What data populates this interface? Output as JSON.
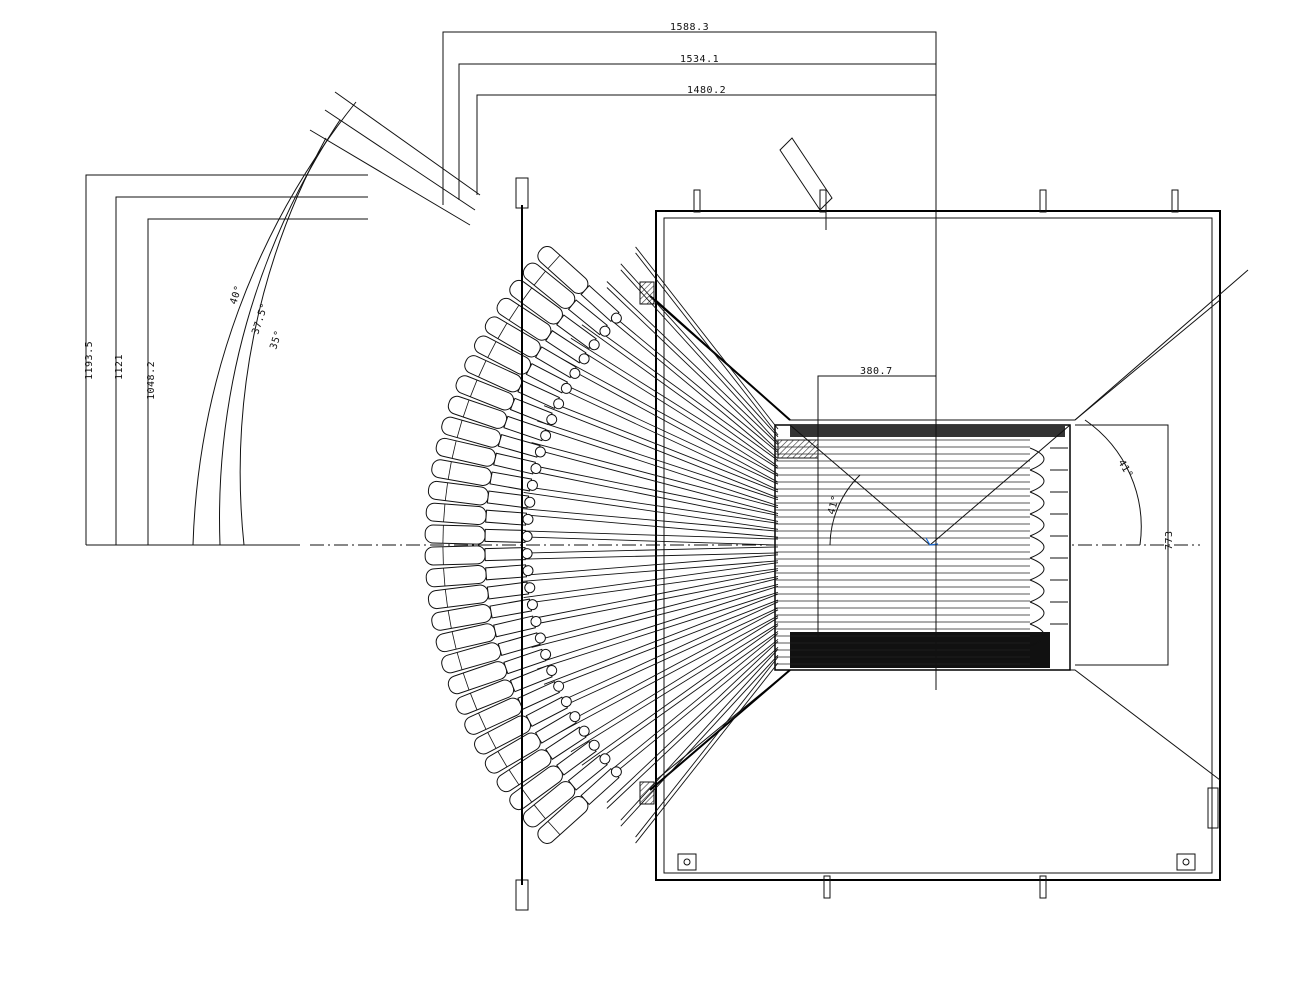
{
  "dimensions": {
    "top_1": "1588.3",
    "top_2": "1534.1",
    "top_3": "1480.2",
    "left_1": "1193.5",
    "left_2": "1121",
    "left_3": "1048.2",
    "center_width": "380.7",
    "right_height": "773"
  },
  "angles": {
    "arc_outer": "40°",
    "arc_middle": "37.5°",
    "arc_inner": "35°",
    "center_left": "41°",
    "center_right": "41°"
  },
  "colors": {
    "line": "#111111",
    "hatch": "#333333",
    "marker": "#1e6fd9"
  }
}
